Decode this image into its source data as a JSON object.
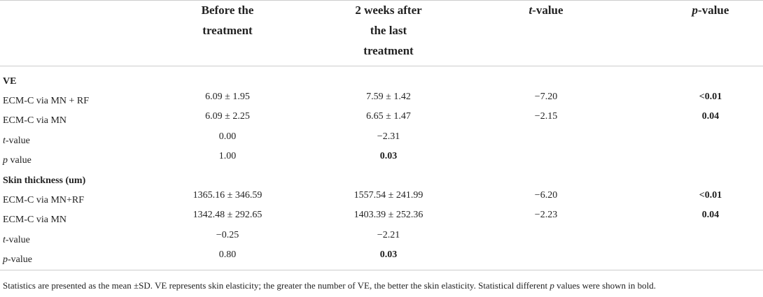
{
  "table": {
    "headers": {
      "before": [
        "Before the",
        "treatment"
      ],
      "after": [
        "2 weeks after",
        "the last",
        "treatment"
      ],
      "t_italic": "t",
      "t_rest": "-value",
      "p_italic": "p",
      "p_rest": "-value"
    },
    "sections": {
      "ve": {
        "title": "VE",
        "rows": [
          {
            "label": "ECM-C via MN + RF",
            "before": "6.09 ± 1.95",
            "after": "7.59 ± 1.42",
            "t": "−7.20",
            "p": "<0.01"
          },
          {
            "label": "ECM-C via MN",
            "before": "6.09 ± 2.25",
            "after": "6.65 ± 1.47",
            "t": "−2.15",
            "p": "0.04"
          },
          {
            "label_italic": "t",
            "label_rest": "-value",
            "before": "0.00",
            "after": "−2.31"
          },
          {
            "label_italic": "p",
            "label_rest": " value",
            "before": "1.00",
            "after": "0.03"
          }
        ]
      },
      "skin": {
        "title": "Skin thickness (um)",
        "rows": [
          {
            "label": "ECM-C via MN+RF",
            "before": "1365.16 ± 346.59",
            "after": "1557.54 ± 241.99",
            "t": "−6.20",
            "p": "<0.01"
          },
          {
            "label": "ECM-C via MN",
            "before": "1342.48 ± 292.65",
            "after": "1403.39 ± 252.36",
            "t": "−2.23",
            "p": "0.04"
          },
          {
            "label_italic": "t",
            "label_rest": "-value",
            "before": "−0.25",
            "after": "−2.21"
          },
          {
            "label_italic": "p",
            "label_rest": "-value",
            "before": "0.80",
            "after": "0.03"
          }
        ]
      }
    },
    "footnote": {
      "part1": "Statistics are presented as the mean ±SD. VE represents skin elasticity; the greater the number of VE, the better the skin elasticity. Statistical different ",
      "italic": "p",
      "part2": " values were shown in bold."
    }
  }
}
